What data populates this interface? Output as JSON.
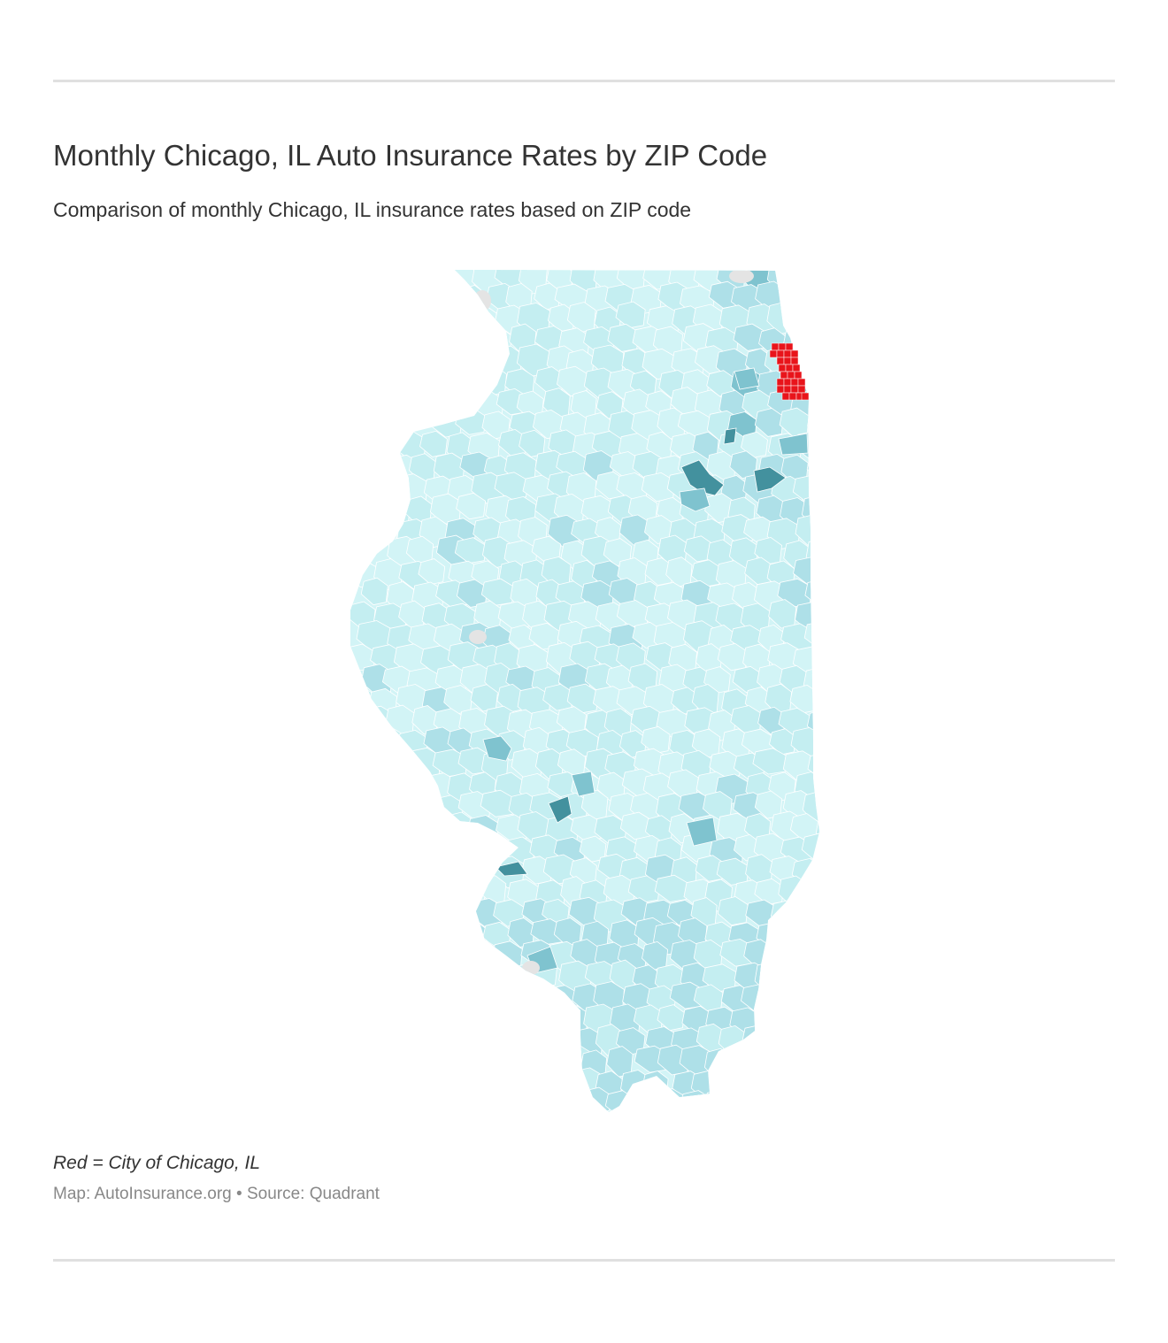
{
  "title": "Monthly Chicago, IL Auto Insurance Rates by ZIP Code",
  "subtitle": "Comparison of monthly Chicago, IL insurance rates based on ZIP code",
  "note": "Red = City of Chicago, IL",
  "credit": {
    "map_label": "Map: AutoInsurance.org",
    "separator": "•",
    "source_label": "Source: Quadrant"
  },
  "map": {
    "region": "Illinois",
    "shading": "ZIP code areas shaded light to dark teal",
    "highlight_color": "#e8141b",
    "colors": {
      "base": "#d2f4f6",
      "light": "#c4eef1",
      "medium": "#aee0e8",
      "darker": "#7fc3cf",
      "darkest": "#43919e",
      "no_data": "#e4e4e4",
      "boundary": "#ffffff"
    }
  }
}
